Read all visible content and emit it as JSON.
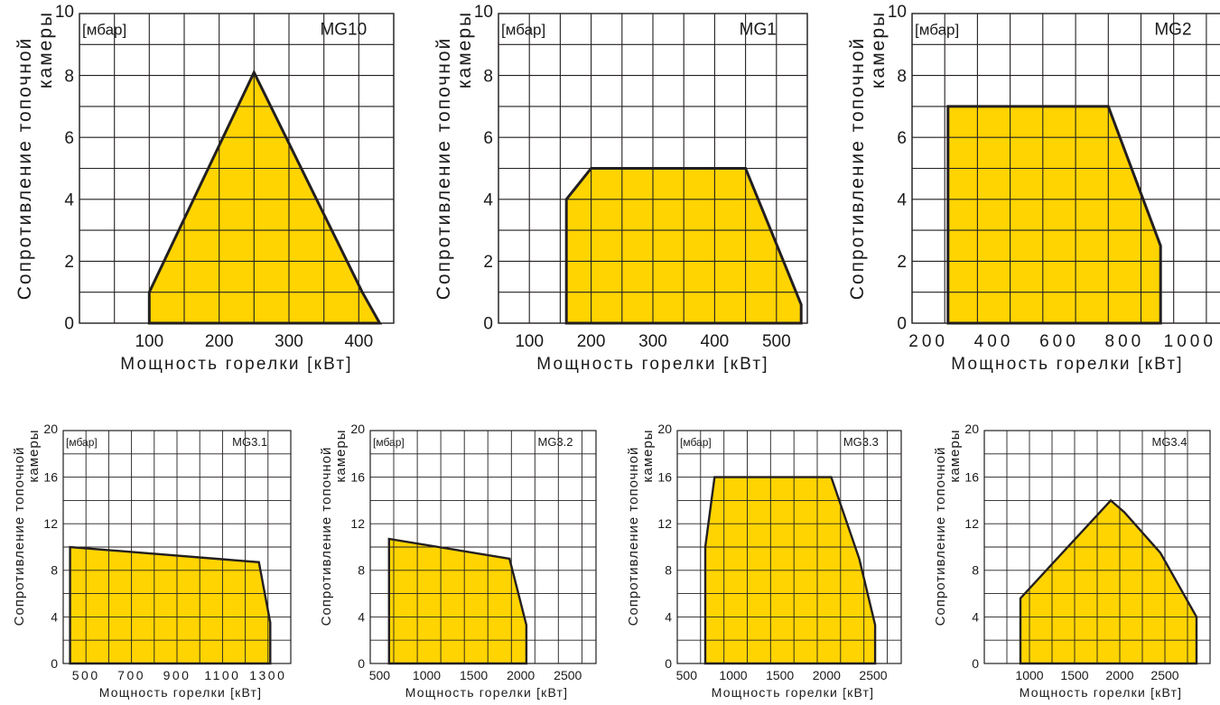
{
  "colors": {
    "fill": "#FFD400",
    "line": "#231f20",
    "grid": "#231f20"
  },
  "chart_data": [
    {
      "type": "area",
      "title": "MG10",
      "unit_label": "[мбар]",
      "ylabel": "Сопротивление топочной камеры",
      "xlabel": "Мощность горелки   [кВт]",
      "xlim": [
        0,
        450
      ],
      "ylim": [
        0,
        10
      ],
      "x_ticks": [
        100,
        200,
        300,
        400
      ],
      "y_ticks": [
        0,
        2,
        4,
        6,
        8,
        10
      ],
      "x_grid_step": 50,
      "y_grid_step": 1,
      "grid": true,
      "points": [
        [
          100,
          0
        ],
        [
          100,
          1
        ],
        [
          250,
          8.1
        ],
        [
          405,
          1
        ],
        [
          430,
          0
        ]
      ]
    },
    {
      "type": "area",
      "title": "MG1",
      "unit_label": "[мбар]",
      "ylabel": "Сопротивление топочной камеры",
      "xlabel": "Мощность горелки   [кВт]",
      "xlim": [
        50,
        550
      ],
      "ylim": [
        0,
        10
      ],
      "x_ticks": [
        100,
        200,
        300,
        400,
        500
      ],
      "y_ticks": [
        0,
        2,
        4,
        6,
        8,
        10
      ],
      "x_grid_step": 50,
      "y_grid_step": 1,
      "grid": true,
      "points": [
        [
          160,
          0
        ],
        [
          160,
          4
        ],
        [
          200,
          5
        ],
        [
          450,
          5
        ],
        [
          540,
          0.6
        ],
        [
          540,
          0
        ]
      ]
    },
    {
      "type": "area",
      "title": "MG2",
      "unit_label": "[мбар]",
      "ylabel": "Сопротивление топочной камеры",
      "xlabel": "Мощность горелки   [кВт]",
      "xlim": [
        150,
        1100
      ],
      "ylim": [
        0,
        10
      ],
      "x_ticks": [
        200,
        400,
        600,
        800,
        1000
      ],
      "y_ticks": [
        0,
        2,
        4,
        6,
        8,
        10
      ],
      "x_grid_step": 100,
      "y_grid_step": 1,
      "grid": true,
      "points": [
        [
          260,
          0
        ],
        [
          260,
          7
        ],
        [
          750,
          7
        ],
        [
          910,
          2.5
        ],
        [
          910,
          0
        ]
      ]
    },
    {
      "type": "area",
      "title": "MG3.1",
      "unit_label": "[мбар]",
      "ylabel": "Сопротивление топочной камеры",
      "xlabel": "Мощность горелки   [кВт]",
      "xlim": [
        400,
        1400
      ],
      "ylim": [
        0,
        20
      ],
      "x_ticks": [
        500,
        700,
        900,
        1100,
        1300
      ],
      "y_ticks": [
        0,
        4,
        8,
        12,
        16,
        20
      ],
      "x_grid_step": 100,
      "y_grid_step": 2,
      "grid": true,
      "points": [
        [
          430,
          0
        ],
        [
          430,
          10
        ],
        [
          1260,
          8.7
        ],
        [
          1310,
          3.5
        ],
        [
          1310,
          0
        ]
      ]
    },
    {
      "type": "area",
      "title": "MG3.2",
      "unit_label": "[мбар]",
      "ylabel": "Сопротивление топочной камеры",
      "xlabel": "Мощность горелки   [кВт]",
      "xlim": [
        400,
        2800
      ],
      "ylim": [
        0,
        20
      ],
      "x_ticks": [
        500,
        1000,
        1500,
        2000,
        2500
      ],
      "y_ticks": [
        0,
        4,
        8,
        12,
        16,
        20
      ],
      "x_grid_step": 250,
      "y_grid_step": 2,
      "grid": true,
      "points": [
        [
          600,
          0
        ],
        [
          600,
          10.7
        ],
        [
          1880,
          9
        ],
        [
          2060,
          3.3
        ],
        [
          2060,
          0
        ]
      ]
    },
    {
      "type": "area",
      "title": "MG3.3",
      "unit_label": "[мбар]",
      "ylabel": "Сопротивление топочной камеры",
      "xlabel": "Мощность горелки   [кВт]",
      "xlim": [
        400,
        2800
      ],
      "ylim": [
        0,
        20
      ],
      "x_ticks": [
        500,
        1000,
        1500,
        2000,
        2500
      ],
      "y_ticks": [
        0,
        4,
        8,
        12,
        16,
        20
      ],
      "x_grid_step": 250,
      "y_grid_step": 2,
      "grid": true,
      "points": [
        [
          700,
          0
        ],
        [
          700,
          10
        ],
        [
          800,
          16
        ],
        [
          2050,
          16
        ],
        [
          2350,
          9
        ],
        [
          2520,
          3.3
        ],
        [
          2520,
          0
        ]
      ]
    },
    {
      "type": "area",
      "title": "MG3.4",
      "unit_label": "",
      "ylabel": "Сопротивление топочной камеры",
      "xlabel": "Мощность горелки   [кВт]",
      "xlim": [
        500,
        3000
      ],
      "ylim": [
        0,
        20
      ],
      "x_ticks": [
        1000,
        1500,
        2000,
        2500
      ],
      "y_ticks": [
        0,
        4,
        8,
        12,
        16,
        20
      ],
      "x_grid_step": 250,
      "y_grid_step": 2,
      "grid": true,
      "points": [
        [
          900,
          0
        ],
        [
          900,
          5.6
        ],
        [
          1900,
          14
        ],
        [
          2050,
          13
        ],
        [
          2450,
          9.5
        ],
        [
          2850,
          4
        ],
        [
          2850,
          0
        ]
      ]
    }
  ]
}
